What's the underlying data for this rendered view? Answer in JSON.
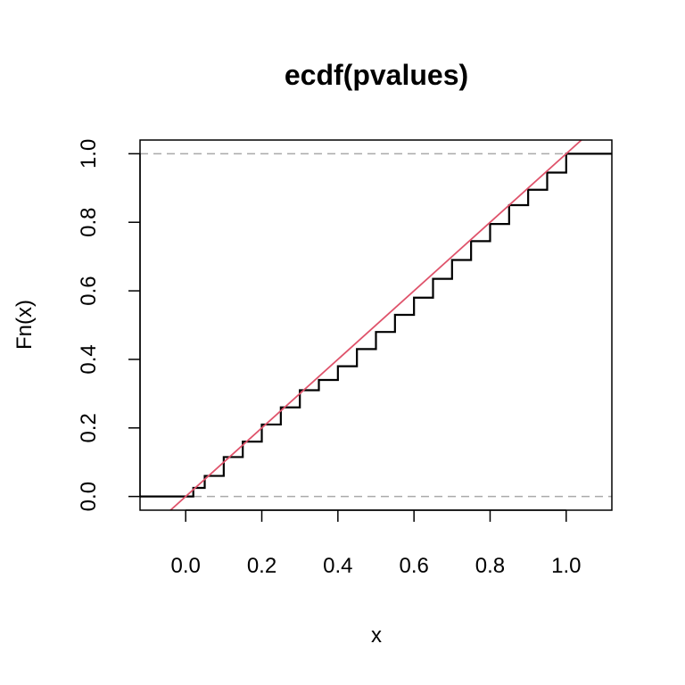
{
  "chart_data": {
    "type": "line",
    "title": "ecdf(pvalues)",
    "xlabel": "x",
    "ylabel": "Fn(x)",
    "xlim": [
      -0.12,
      1.12
    ],
    "ylim": [
      -0.04,
      1.04
    ],
    "x_ticks": [
      "0.0",
      "0.2",
      "0.4",
      "0.6",
      "0.8",
      "1.0"
    ],
    "y_ticks": [
      "0.0",
      "0.2",
      "0.4",
      "0.6",
      "0.8",
      "1.0"
    ],
    "grid": false,
    "legend": "none",
    "horizontal_reference_lines": [
      0,
      1
    ],
    "series": [
      {
        "kind": "step",
        "color": "#000000",
        "x": [
          -0.12,
          0.0,
          0.02,
          0.05,
          0.1,
          0.15,
          0.2,
          0.25,
          0.3,
          0.35,
          0.4,
          0.45,
          0.5,
          0.55,
          0.6,
          0.65,
          0.7,
          0.75,
          0.8,
          0.85,
          0.9,
          0.95,
          1.0,
          1.12
        ],
        "y": [
          0.0,
          0.0,
          0.025,
          0.06,
          0.115,
          0.16,
          0.21,
          0.26,
          0.31,
          0.34,
          0.38,
          0.43,
          0.48,
          0.53,
          0.58,
          0.635,
          0.69,
          0.745,
          0.795,
          0.85,
          0.895,
          0.945,
          1.0,
          1.0
        ]
      },
      {
        "kind": "line",
        "color": "#DF536B",
        "x": [
          -0.04,
          1.04
        ],
        "y": [
          -0.04,
          1.04
        ]
      }
    ],
    "reference_line_color": "#AAAAAA"
  }
}
